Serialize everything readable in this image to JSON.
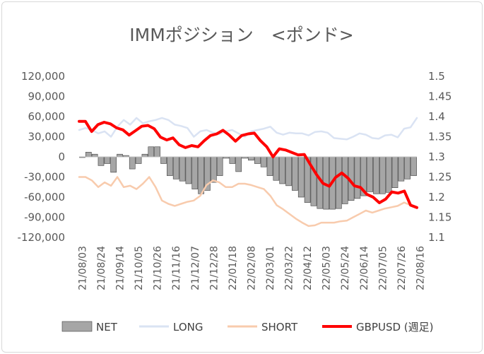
{
  "chart_data": {
    "type": "bar",
    "title": "IMMポジション　<ポンド>",
    "x_labels": [
      "21/08/03",
      "21/08/24",
      "21/09/14",
      "21/10/05",
      "21/10/26",
      "21/11/16",
      "21/12/07",
      "21/12/28",
      "22/01/18",
      "22/02/08",
      "22/03/01",
      "22/03/22",
      "22/04/12",
      "22/05/03",
      "22/05/24",
      "22/06/14",
      "22/07/05",
      "22/07/26",
      "22/08/16"
    ],
    "y_left": {
      "min": -120000,
      "max": 120000,
      "ticks": [
        "120,000",
        "90,000",
        "60,000",
        "30,000",
        "0",
        "-30,000",
        "-60,000",
        "-90,000",
        "-120,000"
      ]
    },
    "y_right": {
      "min": 1.1,
      "max": 1.5,
      "ticks": [
        "1.5",
        "1.45",
        "1.4",
        "1.35",
        "1.3",
        "1.25",
        "1.2",
        "1.15",
        "1.1"
      ]
    },
    "series": [
      {
        "name": "NET",
        "type": "bar",
        "axis": "left",
        "color": "#a6a6a6",
        "values": [
          -1000,
          7000,
          4000,
          -13000,
          -10000,
          -23000,
          4000,
          2000,
          -18000,
          -10000,
          4000,
          15000,
          15000,
          -10000,
          -28000,
          -33000,
          -36000,
          -40000,
          -48000,
          -55000,
          -50000,
          -38000,
          -28000,
          -2000,
          -10000,
          -22000,
          -2000,
          -5000,
          -10000,
          -15000,
          -28000,
          -35000,
          -40000,
          -43000,
          -50000,
          -60000,
          -68000,
          -73000,
          -77000,
          -78000,
          -78000,
          -77000,
          -70000,
          -65000,
          -62000,
          -58000,
          -52000,
          -55000,
          -55000,
          -53000,
          -46000,
          -36000,
          -33000,
          -28000
        ]
      },
      {
        "name": "LONG",
        "type": "line",
        "axis": "left",
        "color": "#dae3f3",
        "values": [
          40000,
          43000,
          40000,
          35000,
          38000,
          30000,
          45000,
          55000,
          48000,
          58000,
          50000,
          53000,
          55000,
          58000,
          55000,
          48000,
          46000,
          43000,
          30000,
          38000,
          40000,
          36000,
          34000,
          38000,
          40000,
          35000,
          30000,
          38000,
          40000,
          42000,
          45000,
          36000,
          33000,
          36000,
          35000,
          35000,
          32000,
          37000,
          38000,
          36000,
          28000,
          27000,
          26000,
          30000,
          35000,
          33000,
          28000,
          27000,
          32000,
          33000,
          29000,
          42000,
          44000,
          58000
        ]
      },
      {
        "name": "SHORT",
        "type": "line",
        "axis": "left",
        "color": "#f8cbad",
        "values": [
          -30000,
          -30000,
          -35000,
          -45000,
          -38000,
          -43000,
          -30000,
          -45000,
          -43000,
          -48000,
          -40000,
          -30000,
          -45000,
          -65000,
          -70000,
          -73000,
          -70000,
          -67000,
          -65000,
          -58000,
          -42000,
          -35000,
          -38000,
          -45000,
          -45000,
          -40000,
          -40000,
          -42000,
          -45000,
          -48000,
          -58000,
          -72000,
          -78000,
          -85000,
          -92000,
          -98000,
          -103000,
          -102000,
          -98000,
          -98000,
          -98000,
          -96000,
          -95000,
          -90000,
          -85000,
          -80000,
          -83000,
          -80000,
          -77000,
          -75000,
          -73000,
          -68000,
          -72000,
          -75000
        ]
      },
      {
        "name": "GBPUSD (週足)",
        "type": "line",
        "axis": "right",
        "color": "#ff0000",
        "values": [
          1.388,
          1.388,
          1.363,
          1.38,
          1.386,
          1.382,
          1.372,
          1.367,
          1.354,
          1.365,
          1.376,
          1.378,
          1.37,
          1.349,
          1.342,
          1.347,
          1.33,
          1.323,
          1.328,
          1.325,
          1.34,
          1.353,
          1.357,
          1.366,
          1.354,
          1.339,
          1.353,
          1.357,
          1.359,
          1.34,
          1.325,
          1.3,
          1.32,
          1.317,
          1.311,
          1.305,
          1.306,
          1.28,
          1.255,
          1.234,
          1.227,
          1.249,
          1.26,
          1.247,
          1.228,
          1.224,
          1.207,
          1.2,
          1.186,
          1.195,
          1.213,
          1.21,
          1.215,
          1.18,
          1.174
        ]
      }
    ],
    "legend_position": "bottom",
    "grid": false
  }
}
